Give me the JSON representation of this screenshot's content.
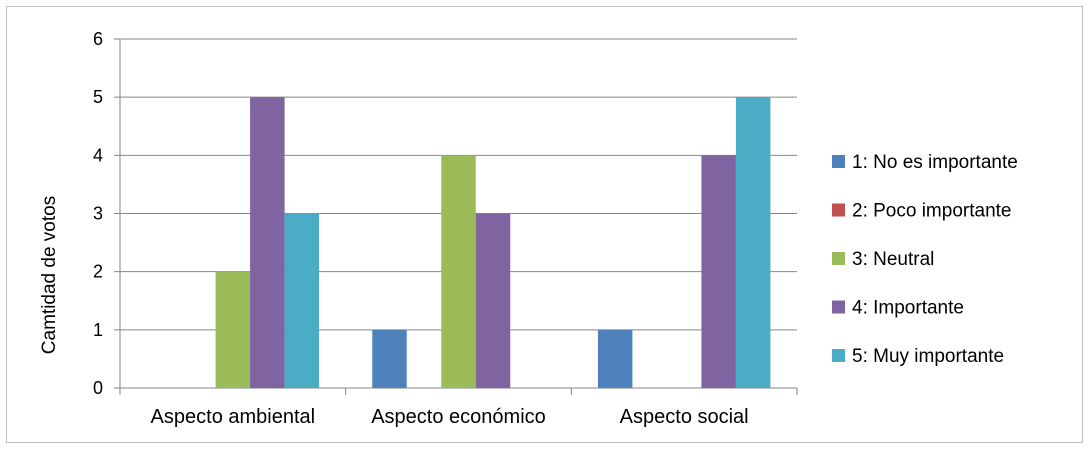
{
  "chart_data": {
    "type": "bar",
    "title": "",
    "xlabel": "",
    "ylabel": "Camtidad de votos",
    "ylim": [
      0,
      6
    ],
    "yticks": [
      0,
      1,
      2,
      3,
      4,
      5,
      6
    ],
    "grid": true,
    "legend_position": "right",
    "categories": [
      "Aspecto ambiental",
      "Aspecto económico",
      "Aspecto social"
    ],
    "series": [
      {
        "name": "1: No es importante",
        "color": "#4f81bd",
        "values": [
          0,
          1,
          1
        ]
      },
      {
        "name": "2: Poco importante",
        "color": "#c0504d",
        "values": [
          0,
          0,
          0
        ]
      },
      {
        "name": "3: Neutral",
        "color": "#9bbb59",
        "values": [
          2,
          4,
          0
        ]
      },
      {
        "name": "4: Importante",
        "color": "#8064a2",
        "values": [
          5,
          3,
          4
        ]
      },
      {
        "name": "5: Muy importante",
        "color": "#4bacc6",
        "values": [
          3,
          0,
          5
        ]
      }
    ]
  }
}
